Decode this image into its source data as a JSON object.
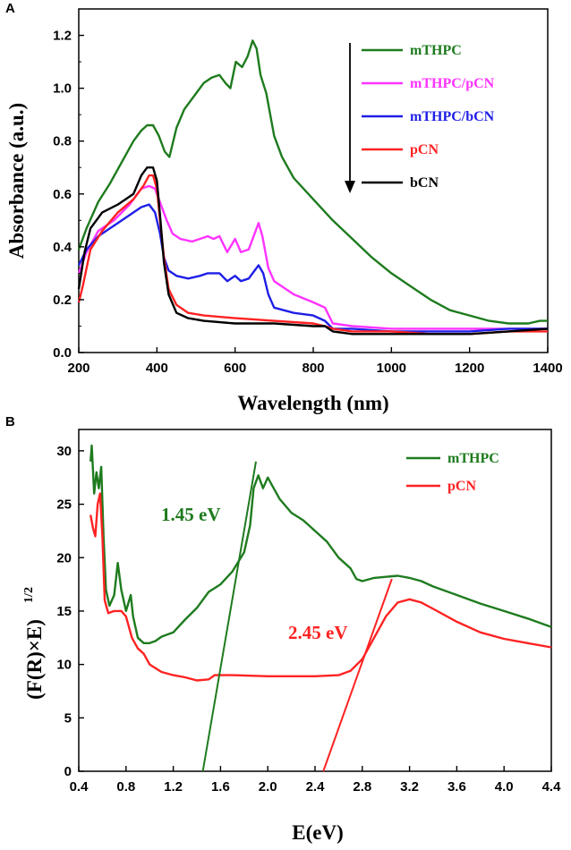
{
  "chart_data": [
    {
      "panel": "A",
      "type": "line",
      "xlabel": "Wavelength (nm)",
      "ylabel": "Absorbance (a.u.)",
      "xlim": [
        200,
        1400
      ],
      "ylim": [
        0.0,
        1.3
      ],
      "xticks": [
        200,
        400,
        600,
        800,
        1000,
        1200,
        1400
      ],
      "yticks": [
        "0.0",
        "0.2",
        "0.4",
        "0.6",
        "0.8",
        "1.0",
        "1.2"
      ],
      "legend_position": "top-right",
      "legend_arrow": "down",
      "series": [
        {
          "name": "mTHPC",
          "color": "#1e7b1e",
          "points": [
            [
              200,
              0.39
            ],
            [
              220,
              0.47
            ],
            [
              250,
              0.57
            ],
            [
              280,
              0.64
            ],
            [
              310,
              0.72
            ],
            [
              340,
              0.8
            ],
            [
              360,
              0.84
            ],
            [
              375,
              0.86
            ],
            [
              390,
              0.86
            ],
            [
              405,
              0.82
            ],
            [
              420,
              0.76
            ],
            [
              432,
              0.74
            ],
            [
              450,
              0.85
            ],
            [
              470,
              0.92
            ],
            [
              500,
              0.98
            ],
            [
              520,
              1.02
            ],
            [
              540,
              1.04
            ],
            [
              560,
              1.05
            ],
            [
              575,
              1.02
            ],
            [
              588,
              1.0
            ],
            [
              602,
              1.1
            ],
            [
              618,
              1.08
            ],
            [
              632,
              1.12
            ],
            [
              645,
              1.18
            ],
            [
              655,
              1.15
            ],
            [
              665,
              1.05
            ],
            [
              680,
              0.98
            ],
            [
              700,
              0.82
            ],
            [
              720,
              0.74
            ],
            [
              750,
              0.66
            ],
            [
              800,
              0.58
            ],
            [
              850,
              0.5
            ],
            [
              900,
              0.43
            ],
            [
              950,
              0.36
            ],
            [
              1000,
              0.3
            ],
            [
              1050,
              0.25
            ],
            [
              1100,
              0.2
            ],
            [
              1150,
              0.16
            ],
            [
              1200,
              0.14
            ],
            [
              1250,
              0.12
            ],
            [
              1300,
              0.11
            ],
            [
              1350,
              0.11
            ],
            [
              1380,
              0.12
            ],
            [
              1400,
              0.12
            ]
          ]
        },
        {
          "name": "mTHPC/pCN",
          "color": "#ff33ff",
          "points": [
            [
              200,
              0.3
            ],
            [
              220,
              0.38
            ],
            [
              250,
              0.46
            ],
            [
              290,
              0.5
            ],
            [
              330,
              0.56
            ],
            [
              360,
              0.62
            ],
            [
              380,
              0.63
            ],
            [
              395,
              0.62
            ],
            [
              410,
              0.56
            ],
            [
              425,
              0.5
            ],
            [
              440,
              0.45
            ],
            [
              460,
              0.43
            ],
            [
              490,
              0.42
            ],
            [
              510,
              0.43
            ],
            [
              530,
              0.44
            ],
            [
              545,
              0.43
            ],
            [
              560,
              0.44
            ],
            [
              580,
              0.38
            ],
            [
              600,
              0.43
            ],
            [
              615,
              0.38
            ],
            [
              635,
              0.39
            ],
            [
              650,
              0.45
            ],
            [
              660,
              0.49
            ],
            [
              670,
              0.44
            ],
            [
              685,
              0.32
            ],
            [
              700,
              0.27
            ],
            [
              750,
              0.22
            ],
            [
              800,
              0.19
            ],
            [
              830,
              0.17
            ],
            [
              850,
              0.11
            ],
            [
              900,
              0.1
            ],
            [
              1000,
              0.09
            ],
            [
              1100,
              0.09
            ],
            [
              1200,
              0.09
            ],
            [
              1300,
              0.09
            ],
            [
              1400,
              0.09
            ]
          ]
        },
        {
          "name": "mTHPC/bCN",
          "color": "#1f1fe6",
          "points": [
            [
              200,
              0.33
            ],
            [
              220,
              0.39
            ],
            [
              250,
              0.44
            ],
            [
              290,
              0.48
            ],
            [
              330,
              0.52
            ],
            [
              360,
              0.55
            ],
            [
              380,
              0.56
            ],
            [
              395,
              0.53
            ],
            [
              408,
              0.45
            ],
            [
              418,
              0.36
            ],
            [
              430,
              0.31
            ],
            [
              450,
              0.29
            ],
            [
              480,
              0.28
            ],
            [
              510,
              0.29
            ],
            [
              530,
              0.3
            ],
            [
              545,
              0.3
            ],
            [
              560,
              0.3
            ],
            [
              580,
              0.27
            ],
            [
              600,
              0.29
            ],
            [
              615,
              0.27
            ],
            [
              635,
              0.28
            ],
            [
              650,
              0.31
            ],
            [
              660,
              0.33
            ],
            [
              672,
              0.3
            ],
            [
              685,
              0.22
            ],
            [
              700,
              0.17
            ],
            [
              750,
              0.15
            ],
            [
              800,
              0.14
            ],
            [
              830,
              0.12
            ],
            [
              850,
              0.09
            ],
            [
              900,
              0.09
            ],
            [
              1000,
              0.08
            ],
            [
              1100,
              0.08
            ],
            [
              1200,
              0.08
            ],
            [
              1300,
              0.09
            ],
            [
              1400,
              0.09
            ]
          ]
        },
        {
          "name": "pCN",
          "color": "#ff2222",
          "points": [
            [
              200,
              0.19
            ],
            [
              210,
              0.25
            ],
            [
              230,
              0.39
            ],
            [
              260,
              0.46
            ],
            [
              300,
              0.53
            ],
            [
              340,
              0.58
            ],
            [
              365,
              0.63
            ],
            [
              380,
              0.67
            ],
            [
              390,
              0.67
            ],
            [
              400,
              0.62
            ],
            [
              408,
              0.5
            ],
            [
              418,
              0.36
            ],
            [
              430,
              0.24
            ],
            [
              450,
              0.18
            ],
            [
              480,
              0.15
            ],
            [
              520,
              0.14
            ],
            [
              600,
              0.13
            ],
            [
              700,
              0.12
            ],
            [
              800,
              0.11
            ],
            [
              830,
              0.1
            ],
            [
              850,
              0.09
            ],
            [
              900,
              0.08
            ],
            [
              1000,
              0.08
            ],
            [
              1100,
              0.07
            ],
            [
              1200,
              0.07
            ],
            [
              1300,
              0.08
            ],
            [
              1400,
              0.08
            ]
          ]
        },
        {
          "name": "bCN",
          "color": "#000000",
          "points": [
            [
              200,
              0.24
            ],
            [
              215,
              0.38
            ],
            [
              230,
              0.47
            ],
            [
              260,
              0.53
            ],
            [
              300,
              0.56
            ],
            [
              340,
              0.6
            ],
            [
              360,
              0.67
            ],
            [
              375,
              0.7
            ],
            [
              390,
              0.7
            ],
            [
              400,
              0.65
            ],
            [
              408,
              0.52
            ],
            [
              418,
              0.34
            ],
            [
              430,
              0.22
            ],
            [
              450,
              0.15
            ],
            [
              480,
              0.13
            ],
            [
              520,
              0.12
            ],
            [
              600,
              0.11
            ],
            [
              700,
              0.11
            ],
            [
              800,
              0.1
            ],
            [
              830,
              0.1
            ],
            [
              850,
              0.08
            ],
            [
              900,
              0.07
            ],
            [
              1000,
              0.07
            ],
            [
              1100,
              0.07
            ],
            [
              1200,
              0.07
            ],
            [
              1300,
              0.08
            ],
            [
              1400,
              0.09
            ]
          ]
        }
      ]
    },
    {
      "panel": "B",
      "type": "line",
      "xlabel": "E(eV)",
      "ylabel": "(F(R)×E)",
      "ylabel_superscript": "1/2",
      "xlim": [
        0.4,
        4.4
      ],
      "ylim": [
        0,
        32
      ],
      "xticks": [
        "0.4",
        "0.8",
        "1.2",
        "1.6",
        "2.0",
        "2.4",
        "2.8",
        "3.2",
        "3.6",
        "4.0",
        "4.4"
      ],
      "yticks": [
        "0",
        "5",
        "10",
        "15",
        "20",
        "25",
        "30"
      ],
      "legend_position": "top-right",
      "series": [
        {
          "name": "mTHPC",
          "color": "#1e7b1e",
          "points": [
            [
              0.5,
              29
            ],
            [
              0.51,
              30.5
            ],
            [
              0.53,
              26
            ],
            [
              0.55,
              28
            ],
            [
              0.57,
              26.5
            ],
            [
              0.59,
              28.5
            ],
            [
              0.61,
              22
            ],
            [
              0.63,
              17
            ],
            [
              0.66,
              15.5
            ],
            [
              0.7,
              16.5
            ],
            [
              0.73,
              19.5
            ],
            [
              0.76,
              17
            ],
            [
              0.8,
              15
            ],
            [
              0.84,
              16.5
            ],
            [
              0.86,
              14.5
            ],
            [
              0.9,
              12.5
            ],
            [
              0.95,
              12
            ],
            [
              1.0,
              12
            ],
            [
              1.05,
              12.2
            ],
            [
              1.1,
              12.6
            ],
            [
              1.2,
              13
            ],
            [
              1.3,
              14.2
            ],
            [
              1.4,
              15.3
            ],
            [
              1.5,
              16.8
            ],
            [
              1.6,
              17.5
            ],
            [
              1.7,
              18.7
            ],
            [
              1.8,
              20.5
            ],
            [
              1.85,
              23
            ],
            [
              1.88,
              26.5
            ],
            [
              1.92,
              27.7
            ],
            [
              1.96,
              26.5
            ],
            [
              2.0,
              27.5
            ],
            [
              2.05,
              26.5
            ],
            [
              2.1,
              25.5
            ],
            [
              2.2,
              24.2
            ],
            [
              2.3,
              23.5
            ],
            [
              2.4,
              22.5
            ],
            [
              2.5,
              21.5
            ],
            [
              2.6,
              20
            ],
            [
              2.7,
              19
            ],
            [
              2.75,
              18
            ],
            [
              2.8,
              17.8
            ],
            [
              2.9,
              18.1
            ],
            [
              3.0,
              18.2
            ],
            [
              3.1,
              18.3
            ],
            [
              3.2,
              18.1
            ],
            [
              3.3,
              17.8
            ],
            [
              3.4,
              17.3
            ],
            [
              3.6,
              16.5
            ],
            [
              3.8,
              15.7
            ],
            [
              4.0,
              15
            ],
            [
              4.2,
              14.3
            ],
            [
              4.4,
              13.5
            ]
          ]
        },
        {
          "name": "pCN",
          "color": "#ff2222",
          "points": [
            [
              0.5,
              24
            ],
            [
              0.52,
              22.8
            ],
            [
              0.54,
              22
            ],
            [
              0.56,
              25
            ],
            [
              0.58,
              26
            ],
            [
              0.6,
              22
            ],
            [
              0.62,
              16
            ],
            [
              0.65,
              14.8
            ],
            [
              0.7,
              15
            ],
            [
              0.76,
              15
            ],
            [
              0.8,
              14.5
            ],
            [
              0.85,
              12.5
            ],
            [
              0.9,
              11.5
            ],
            [
              0.95,
              11
            ],
            [
              1.0,
              10
            ],
            [
              1.1,
              9.3
            ],
            [
              1.2,
              9.0
            ],
            [
              1.3,
              8.8
            ],
            [
              1.4,
              8.5
            ],
            [
              1.5,
              8.6
            ],
            [
              1.55,
              9.0
            ],
            [
              1.7,
              9.0
            ],
            [
              2.0,
              8.9
            ],
            [
              2.2,
              8.9
            ],
            [
              2.4,
              8.9
            ],
            [
              2.6,
              9.0
            ],
            [
              2.7,
              9.4
            ],
            [
              2.8,
              10.5
            ],
            [
              2.9,
              12.5
            ],
            [
              3.0,
              14.5
            ],
            [
              3.1,
              15.8
            ],
            [
              3.2,
              16.1
            ],
            [
              3.3,
              15.8
            ],
            [
              3.4,
              15.2
            ],
            [
              3.6,
              14.0
            ],
            [
              3.8,
              13.0
            ],
            [
              4.0,
              12.4
            ],
            [
              4.2,
              12.0
            ],
            [
              4.4,
              11.6
            ]
          ]
        }
      ],
      "tangents": [
        {
          "label": "1.45 eV",
          "color": "#1e7b1e",
          "from": [
            1.45,
            0
          ],
          "to": [
            1.9,
            29
          ]
        },
        {
          "label": "2.45 eV",
          "color": "#ff2222",
          "from": [
            2.47,
            0
          ],
          "to": [
            3.05,
            18
          ]
        }
      ]
    }
  ]
}
